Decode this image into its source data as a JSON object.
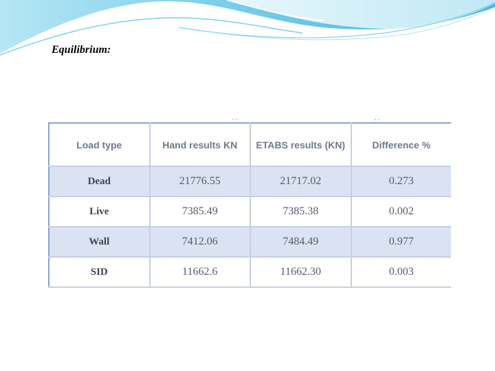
{
  "slide": {
    "title": "Equilibrium:"
  },
  "table": {
    "headers": [
      "Load type",
      "Hand results KN",
      "ETABS results (KN)",
      "Difference %"
    ],
    "rows": [
      {
        "load_type": "Dead",
        "hand": "21776.55",
        "etabs": "21717.02",
        "diff": "0.273"
      },
      {
        "load_type": "Live",
        "hand": "7385.49",
        "etabs": "7385.38",
        "diff": "0.002"
      },
      {
        "load_type": "Wall",
        "hand": "7412.06",
        "etabs": "7484.49",
        "diff": "0.977"
      },
      {
        "load_type": "SID",
        "hand": "11662.6",
        "etabs": "11662.30",
        "diff": "0.003"
      }
    ]
  },
  "colors": {
    "banner_light": "#cfeef8",
    "banner_mid": "#7fd0ea",
    "banner_dark": "#3bb3dd",
    "row_shade": "#dbe3f3",
    "border": "#c6cfe2"
  }
}
